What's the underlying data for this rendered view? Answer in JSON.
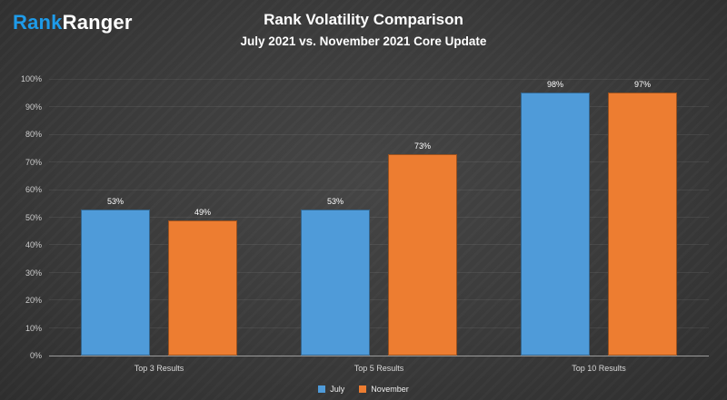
{
  "logo": {
    "part1": "Rank",
    "part2": "Ranger"
  },
  "header": {
    "title": "Rank Volatility Comparison",
    "subtitle": "July 2021 vs. November 2021 Core Update"
  },
  "chart_data": {
    "type": "bar",
    "title": "Rank Volatility Comparison",
    "subtitle": "July 2021 vs. November 2021 Core Update",
    "categories": [
      "Top 3 Results",
      "Top 5 Results",
      "Top 10 Results"
    ],
    "series": [
      {
        "name": "July",
        "color": "#4f9bd9",
        "values": [
          53,
          53,
          98
        ]
      },
      {
        "name": "November",
        "color": "#ed7d31",
        "values": [
          49,
          73,
          97
        ]
      }
    ],
    "xlabel": "",
    "ylabel": "",
    "ylim": [
      0,
      100
    ],
    "ytick_step": 10,
    "ytick_suffix": "%",
    "value_label_suffix": "%",
    "grid": true,
    "legend_position": "bottom"
  },
  "colors": {
    "background": "#3a3a3a",
    "title_text": "#ffffff",
    "axis_text": "#cccccc",
    "logo_blue": "#1e9be9"
  }
}
